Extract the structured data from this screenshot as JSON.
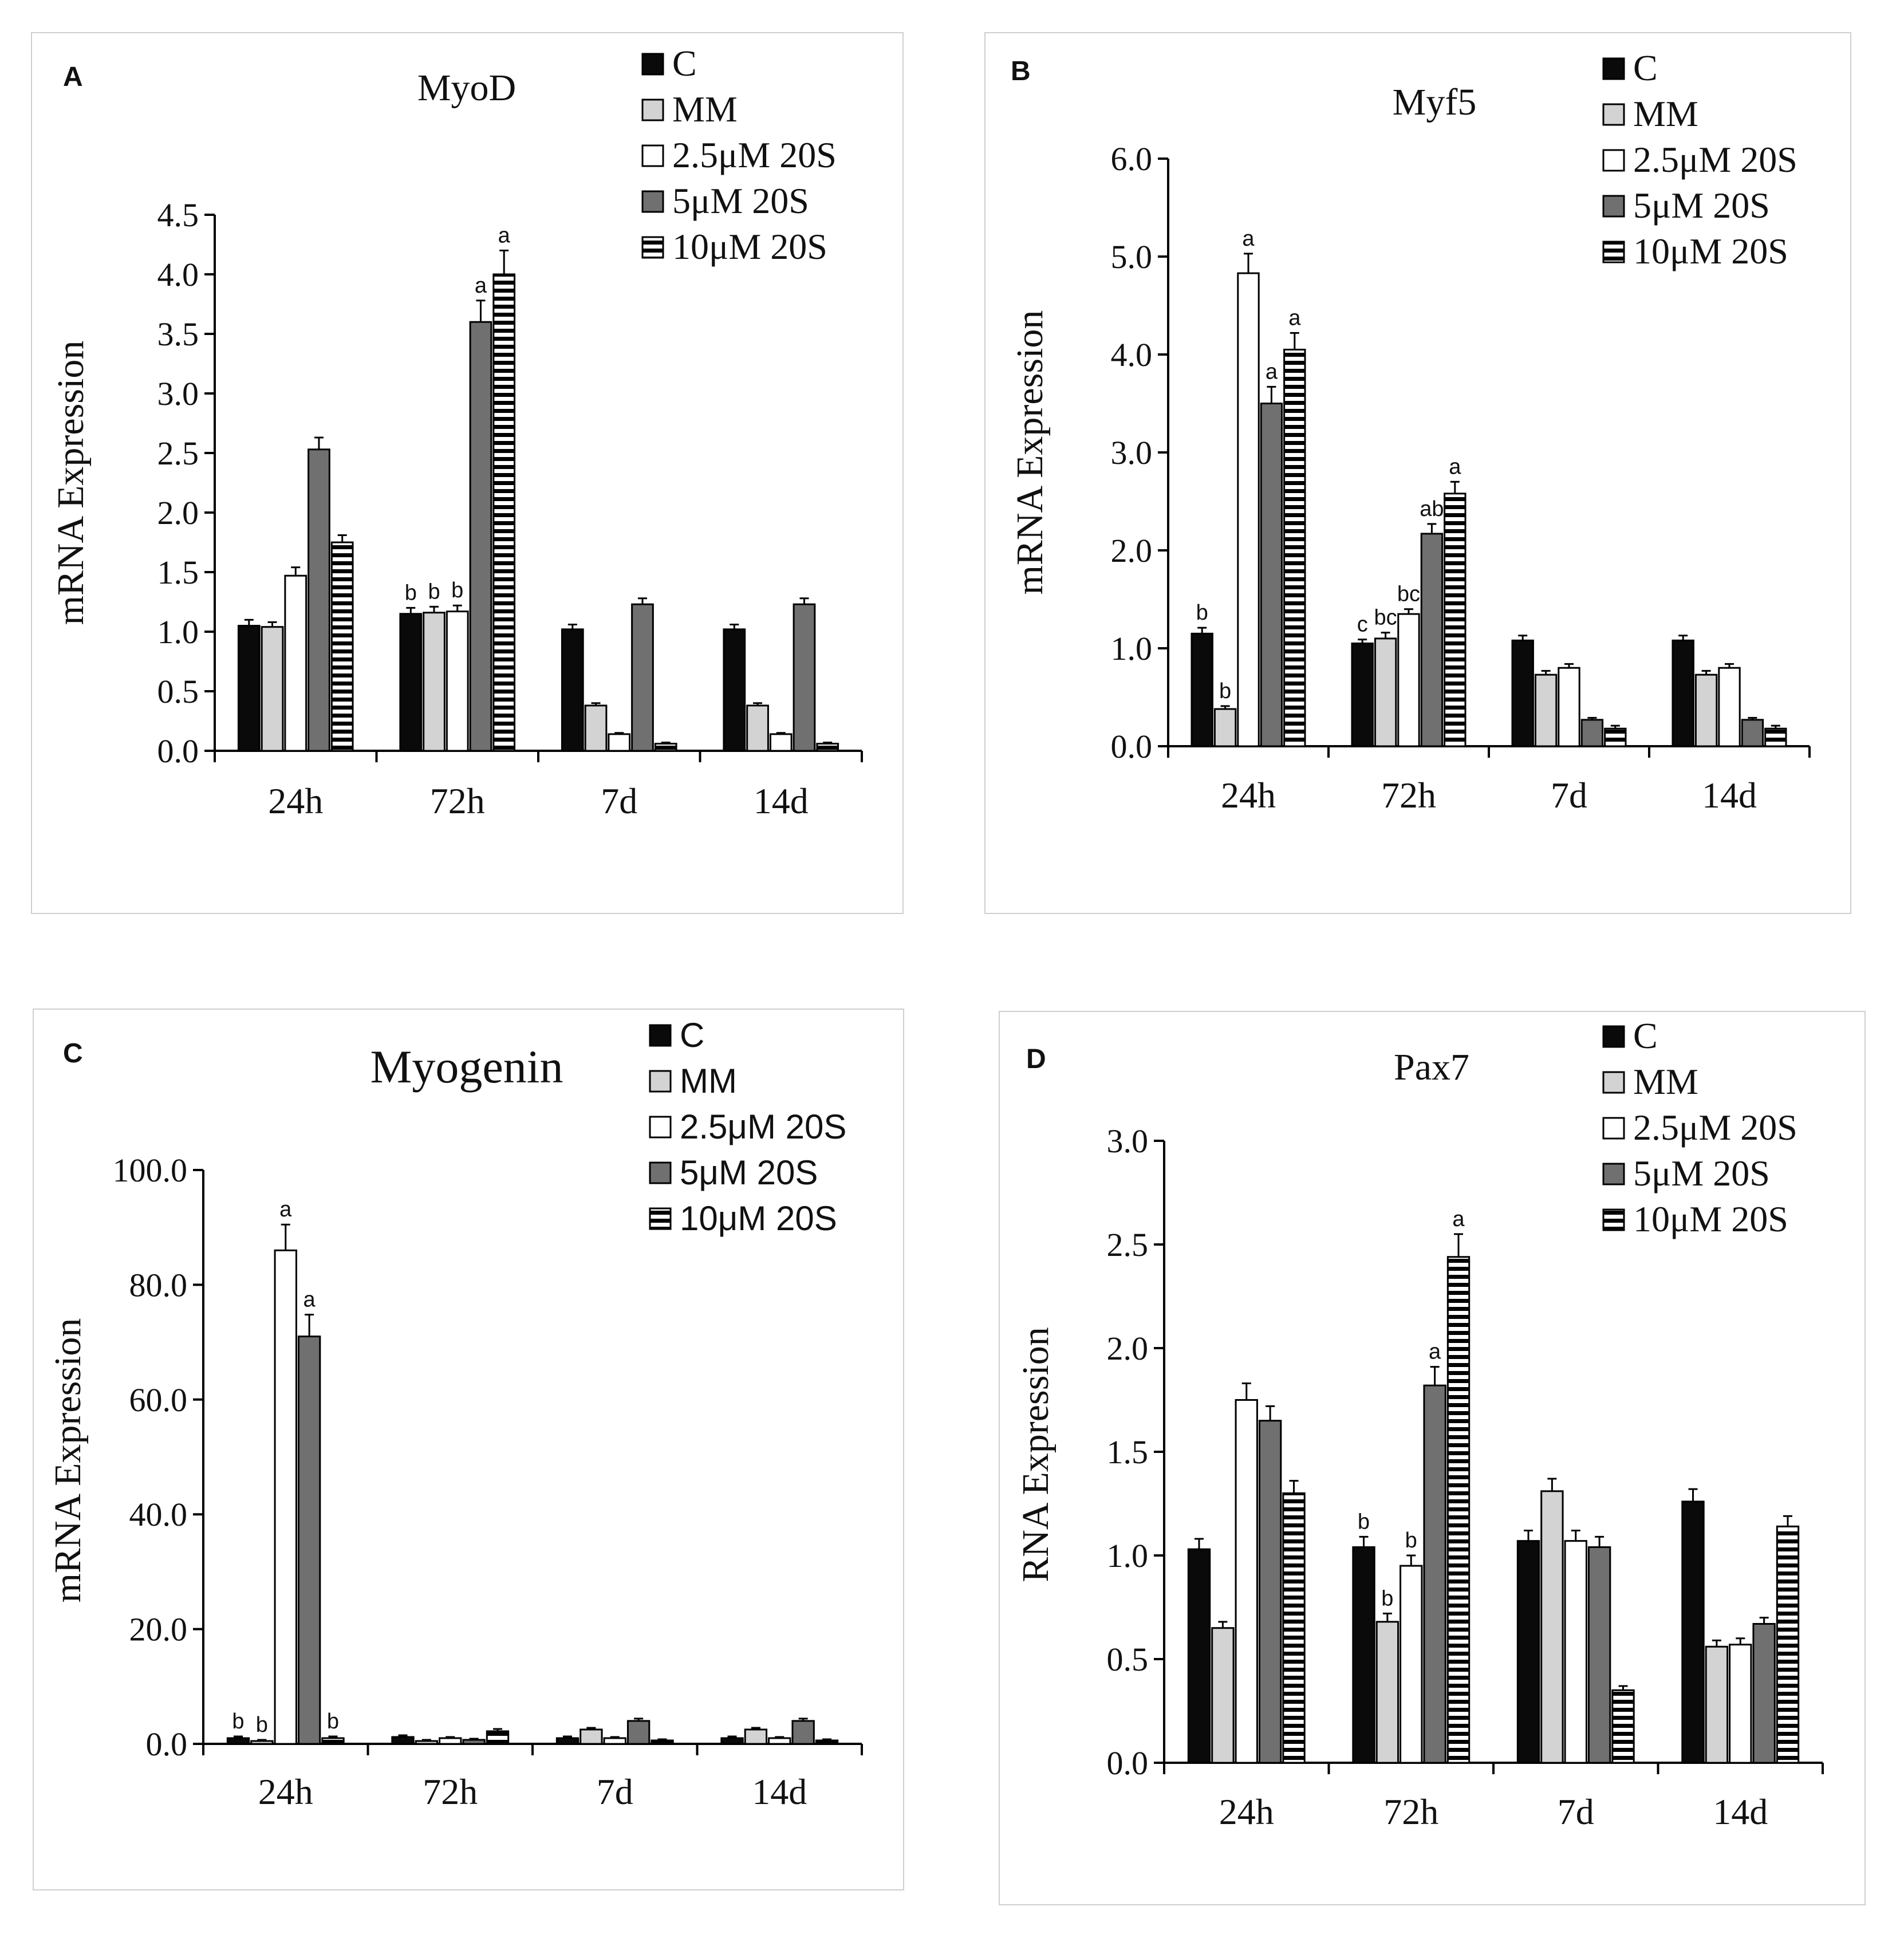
{
  "figure": {
    "legend_entries": [
      "C",
      "MM",
      "2.5μM 20S",
      "5μM 20S",
      "10μM 20S"
    ],
    "colors": {
      "C": "#0a0a0a",
      "MM": "#d3d3d3",
      "2.5μM 20S": "#ffffff",
      "5μM 20S": "#707070",
      "10μM 20S": "striped-black-white",
      "frame": "#cfcfcf"
    }
  },
  "chart_data": [
    {
      "panel": "A",
      "type": "bar",
      "title": "MyoD",
      "xlabel": "",
      "ylabel": "mRNA Expression",
      "ylim": [
        0,
        4.5
      ],
      "yticks": [
        "0.0",
        "0.5",
        "1.0",
        "1.5",
        "2.0",
        "2.5",
        "3.0",
        "3.5",
        "4.0",
        "4.5"
      ],
      "categories": [
        "24h",
        "72h",
        "7d",
        "14d"
      ],
      "legend": "top-right",
      "series": [
        {
          "name": "C",
          "values": [
            1.05,
            1.15,
            1.02,
            1.02
          ],
          "errors": [
            0.05,
            0.05,
            0.04,
            0.04
          ],
          "sig": [
            "",
            "b",
            "",
            ""
          ]
        },
        {
          "name": "MM",
          "values": [
            1.04,
            1.16,
            0.38,
            0.38
          ],
          "errors": [
            0.04,
            0.05,
            0.02,
            0.02
          ],
          "sig": [
            "",
            "b",
            "",
            ""
          ]
        },
        {
          "name": "2.5μM 20S",
          "values": [
            1.47,
            1.17,
            0.14,
            0.14
          ],
          "errors": [
            0.07,
            0.05,
            0.01,
            0.01
          ],
          "sig": [
            "",
            "b",
            "",
            ""
          ]
        },
        {
          "name": "5μM 20S",
          "values": [
            2.53,
            3.6,
            1.23,
            1.23
          ],
          "errors": [
            0.1,
            0.18,
            0.05,
            0.05
          ],
          "sig": [
            "",
            "a",
            "",
            ""
          ]
        },
        {
          "name": "10μM 20S",
          "values": [
            1.75,
            4.0,
            0.06,
            0.06
          ],
          "errors": [
            0.06,
            0.2,
            0.01,
            0.01
          ],
          "sig": [
            "",
            "a",
            "",
            ""
          ]
        }
      ]
    },
    {
      "panel": "B",
      "type": "bar",
      "title": "Myf5",
      "xlabel": "",
      "ylabel": "mRNA Expression",
      "ylim": [
        0,
        6.0
      ],
      "yticks": [
        "0.0",
        "1.0",
        "2.0",
        "3.0",
        "4.0",
        "5.0",
        "6.0"
      ],
      "categories": [
        "24h",
        "72h",
        "7d",
        "14d"
      ],
      "legend": "top-right",
      "series": [
        {
          "name": "C",
          "values": [
            1.15,
            1.05,
            1.08,
            1.08
          ],
          "errors": [
            0.06,
            0.04,
            0.05,
            0.05
          ],
          "sig": [
            "b",
            "c",
            "",
            ""
          ]
        },
        {
          "name": "MM",
          "values": [
            0.38,
            1.1,
            0.73,
            0.73
          ],
          "errors": [
            0.03,
            0.06,
            0.04,
            0.04
          ],
          "sig": [
            "b",
            "bc",
            "",
            ""
          ]
        },
        {
          "name": "2.5μM 20S",
          "values": [
            4.83,
            1.35,
            0.8,
            0.8
          ],
          "errors": [
            0.2,
            0.05,
            0.04,
            0.04
          ],
          "sig": [
            "a",
            "bc",
            "",
            ""
          ]
        },
        {
          "name": "5μM 20S",
          "values": [
            3.5,
            2.17,
            0.27,
            0.27
          ],
          "errors": [
            0.17,
            0.1,
            0.02,
            0.02
          ],
          "sig": [
            "a",
            "ab",
            "",
            ""
          ]
        },
        {
          "name": "10μM 20S",
          "values": [
            4.05,
            2.58,
            0.18,
            0.18
          ],
          "errors": [
            0.17,
            0.12,
            0.03,
            0.03
          ],
          "sig": [
            "a",
            "a",
            "",
            ""
          ]
        }
      ]
    },
    {
      "panel": "C",
      "type": "bar",
      "title": "Myogenin",
      "xlabel": "",
      "ylabel": "mRNA Expression",
      "ylim": [
        0,
        100.0
      ],
      "yticks": [
        "0.0",
        "20.0",
        "40.0",
        "60.0",
        "80.0",
        "100.0"
      ],
      "categories": [
        "24h",
        "72h",
        "7d",
        "14d"
      ],
      "legend": "top-right",
      "series": [
        {
          "name": "C",
          "values": [
            1.0,
            1.2,
            1.0,
            1.0
          ],
          "errors": [
            0.3,
            0.3,
            0.3,
            0.3
          ],
          "sig": [
            "b",
            "",
            "",
            ""
          ]
        },
        {
          "name": "MM",
          "values": [
            0.5,
            0.5,
            2.5,
            2.5
          ],
          "errors": [
            0.2,
            0.2,
            0.3,
            0.3
          ],
          "sig": [
            "b",
            "",
            "",
            ""
          ]
        },
        {
          "name": "2.5μM 20S",
          "values": [
            86.0,
            1.0,
            1.0,
            1.0
          ],
          "errors": [
            4.5,
            0.2,
            0.2,
            0.2
          ],
          "sig": [
            "a",
            "",
            "",
            ""
          ]
        },
        {
          "name": "5μM 20S",
          "values": [
            71.0,
            0.7,
            4.0,
            4.0
          ],
          "errors": [
            3.8,
            0.2,
            0.4,
            0.4
          ],
          "sig": [
            "a",
            "",
            "",
            ""
          ]
        },
        {
          "name": "10μM 20S",
          "values": [
            1.0,
            2.2,
            0.6,
            0.6
          ],
          "errors": [
            0.3,
            0.4,
            0.2,
            0.2
          ],
          "sig": [
            "b",
            "",
            "",
            ""
          ]
        }
      ]
    },
    {
      "panel": "D",
      "type": "bar",
      "title": "Pax7",
      "xlabel": "",
      "ylabel": "RNA Expression",
      "ylim": [
        0,
        3.0
      ],
      "yticks": [
        "0.0",
        "0.5",
        "1.0",
        "1.5",
        "2.0",
        "2.5",
        "3.0"
      ],
      "categories": [
        "24h",
        "72h",
        "7d",
        "14d"
      ],
      "legend": "top-right",
      "series": [
        {
          "name": "C",
          "values": [
            1.03,
            1.04,
            1.07,
            1.26
          ],
          "errors": [
            0.05,
            0.05,
            0.05,
            0.06
          ],
          "sig": [
            "",
            "b",
            "",
            ""
          ]
        },
        {
          "name": "MM",
          "values": [
            0.65,
            0.68,
            1.31,
            0.56
          ],
          "errors": [
            0.03,
            0.04,
            0.06,
            0.03
          ],
          "sig": [
            "",
            "b",
            "",
            ""
          ]
        },
        {
          "name": "2.5μM 20S",
          "values": [
            1.75,
            0.95,
            1.07,
            0.57
          ],
          "errors": [
            0.08,
            0.05,
            0.05,
            0.03
          ],
          "sig": [
            "",
            "b",
            "",
            ""
          ]
        },
        {
          "name": "5μM 20S",
          "values": [
            1.65,
            1.82,
            1.04,
            0.67
          ],
          "errors": [
            0.07,
            0.09,
            0.05,
            0.03
          ],
          "sig": [
            "",
            "a",
            "",
            ""
          ]
        },
        {
          "name": "10μM 20S",
          "values": [
            1.3,
            2.44,
            0.35,
            1.14
          ],
          "errors": [
            0.06,
            0.11,
            0.02,
            0.05
          ],
          "sig": [
            "",
            "a",
            "",
            ""
          ]
        }
      ]
    }
  ]
}
